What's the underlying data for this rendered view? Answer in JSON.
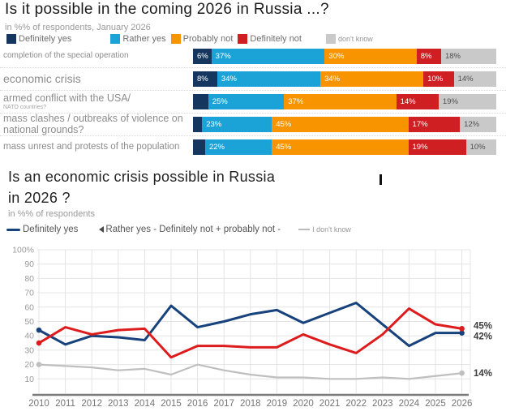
{
  "chart_data": [
    {
      "type": "bar",
      "stacked": true,
      "orientation": "horizontal",
      "title": "Is it possible in the coming 2026 in Russia ...?",
      "subtitle": "in %% of respondents, January 2026",
      "xlim": [
        0,
        100
      ],
      "legend_position": "top",
      "categories": [
        "completion of the special operation",
        "economic crisis",
        "armed conflict with the USA/",
        "mass clashes / outbreaks of violence on national grounds?",
        "mass unrest and protests of the population"
      ],
      "category_notes": [
        "",
        "",
        "NATO countries?",
        "",
        ""
      ],
      "series": [
        {
          "name": "Definitely yes",
          "color": "#14365f",
          "values": [
            6,
            8,
            5,
            3,
            4
          ]
        },
        {
          "name": "Rather yes",
          "color": "#1ba3d8",
          "values": [
            37,
            34,
            25,
            23,
            22
          ]
        },
        {
          "name": "Probably not",
          "color": "#f79400",
          "values": [
            30,
            34,
            37,
            45,
            45
          ]
        },
        {
          "name": "Definitely not",
          "color": "#cf1f23",
          "values": [
            8,
            10,
            14,
            17,
            19
          ]
        },
        {
          "name": "don't know",
          "color": "#c9c9c9",
          "values": [
            18,
            14,
            19,
            12,
            10
          ]
        }
      ],
      "data_labels": [
        [
          "6%",
          "37%",
          "30%",
          "8%",
          "18%"
        ],
        [
          "8%",
          "34%",
          "34%",
          "10%",
          "14%"
        ],
        [
          "",
          "25%",
          "37%",
          "14%",
          "19%"
        ],
        [
          "",
          "23%",
          "45%",
          "17%",
          "12%"
        ],
        [
          "",
          "22%",
          "45%",
          "19%",
          "10%"
        ]
      ]
    },
    {
      "type": "line",
      "title": "Is an economic crisis possible in Russia in 2026 ?",
      "subtitle": "in %% of respondents",
      "grid": true,
      "legend_position": "top",
      "ylim": [
        0,
        100
      ],
      "y_tick_labels": [
        "100%",
        "90",
        "80",
        "70",
        "60",
        "50",
        "40",
        "30",
        "20",
        "10"
      ],
      "x": [
        2010,
        2011,
        2012,
        2013,
        2014,
        2015,
        2016,
        2017,
        2018,
        2019,
        2020,
        2021,
        2022,
        2023,
        2024,
        2025,
        2026
      ],
      "series": [
        {
          "name": "Definitely yes",
          "color": "#17427c",
          "values": [
            44,
            34,
            40,
            39,
            37,
            61,
            46,
            50,
            55,
            58,
            49,
            56,
            63,
            48,
            33,
            42,
            42
          ],
          "end_label": "42%"
        },
        {
          "name": "Rather yes - Definitely not + probably not -",
          "color": "#dd1d1d",
          "values": [
            35,
            46,
            41,
            44,
            45,
            25,
            33,
            33,
            32,
            32,
            41,
            34,
            28,
            41,
            59,
            48,
            45
          ],
          "end_label": "45%"
        },
        {
          "name": "I don't know",
          "color": "#bfbfbf",
          "values": [
            20,
            19,
            18,
            16,
            17,
            13,
            20,
            16,
            13,
            11,
            11,
            10,
            10,
            11,
            10,
            12,
            14
          ],
          "end_label": "14%"
        }
      ]
    }
  ]
}
